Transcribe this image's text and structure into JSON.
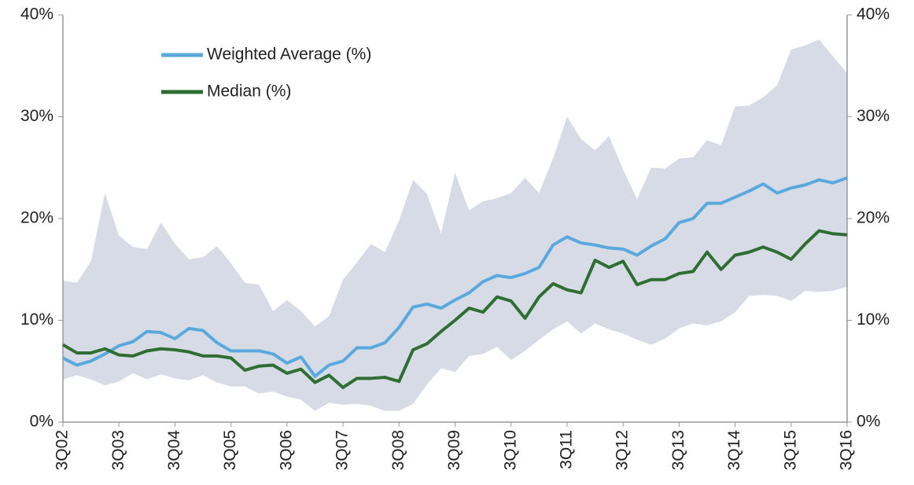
{
  "chart_data": {
    "type": "line",
    "categories": [
      "3Q02",
      null,
      null,
      null,
      "3Q03",
      null,
      null,
      null,
      "3Q04",
      null,
      null,
      null,
      "3Q05",
      null,
      null,
      null,
      "3Q06",
      null,
      null,
      null,
      "3Q07",
      null,
      null,
      null,
      "3Q08",
      null,
      null,
      null,
      "3Q09",
      null,
      null,
      null,
      "3Q10",
      null,
      null,
      null,
      "3Q11",
      null,
      null,
      null,
      "3Q12",
      null,
      null,
      null,
      "3Q13",
      null,
      null,
      null,
      "3Q14",
      null,
      null,
      null,
      "3Q15",
      null,
      null,
      null,
      "3Q16"
    ],
    "series": [
      {
        "name": "Weighted Average (%)",
        "color": "#5aa9de",
        "values": [
          6.3,
          5.6,
          6.0,
          6.7,
          7.5,
          7.9,
          8.9,
          8.8,
          8.2,
          9.2,
          9.0,
          7.8,
          7.0,
          7.0,
          7.0,
          6.7,
          5.8,
          6.4,
          4.5,
          5.6,
          6.0,
          7.3,
          7.3,
          7.8,
          9.3,
          11.3,
          11.6,
          11.2,
          12.0,
          12.7,
          13.8,
          14.4,
          14.2,
          14.6,
          15.2,
          17.4,
          18.2,
          17.6,
          17.4,
          17.1,
          17.0,
          16.4,
          17.3,
          18.0,
          19.6,
          20.0,
          21.5,
          21.5,
          22.1,
          22.7,
          23.4,
          22.5,
          23.0,
          23.3,
          23.8,
          23.5,
          24.0
        ]
      },
      {
        "name": "Median (%)",
        "color": "#2f6e32",
        "values": [
          7.6,
          6.8,
          6.8,
          7.2,
          6.6,
          6.5,
          7.0,
          7.2,
          7.1,
          6.9,
          6.5,
          6.5,
          6.3,
          5.1,
          5.5,
          5.6,
          4.8,
          5.2,
          3.9,
          4.6,
          3.4,
          4.3,
          4.3,
          4.4,
          4.0,
          7.1,
          7.7,
          8.9,
          10.0,
          11.2,
          10.8,
          12.3,
          11.9,
          10.2,
          12.3,
          13.6,
          13.0,
          12.7,
          15.9,
          15.2,
          15.8,
          13.5,
          14.0,
          14.0,
          14.6,
          14.8,
          16.7,
          15.0,
          16.4,
          16.7,
          17.2,
          16.7,
          16.0,
          17.5,
          18.8,
          18.5,
          18.4
        ]
      }
    ],
    "band": {
      "color": "#d6dbe5",
      "upper": [
        13.9,
        13.7,
        15.8,
        22.5,
        18.3,
        17.2,
        17.0,
        19.6,
        17.5,
        16.0,
        16.2,
        17.3,
        15.6,
        13.7,
        13.5,
        10.9,
        12.0,
        10.9,
        9.4,
        10.4,
        14.0,
        15.7,
        17.5,
        16.7,
        19.8,
        23.8,
        22.4,
        18.5,
        24.5,
        20.8,
        21.7,
        22.0,
        22.5,
        24.0,
        22.5,
        25.9,
        30.0,
        27.8,
        26.7,
        28.1,
        24.8,
        21.9,
        25.0,
        24.9,
        25.9,
        26.0,
        27.7,
        27.2,
        31.0,
        31.1,
        31.9,
        33.1,
        36.6,
        37.0,
        37.6,
        35.9,
        34.3
      ],
      "lower": [
        4.2,
        4.6,
        4.2,
        3.6,
        4.0,
        4.8,
        4.2,
        4.7,
        4.3,
        4.1,
        4.6,
        3.9,
        3.5,
        3.5,
        2.8,
        3.0,
        2.5,
        2.2,
        1.1,
        1.9,
        1.7,
        1.8,
        1.6,
        1.1,
        1.1,
        1.8,
        3.7,
        5.3,
        4.9,
        6.5,
        6.7,
        7.4,
        6.1,
        7.0,
        8.1,
        9.1,
        9.9,
        8.7,
        9.7,
        9.1,
        8.7,
        8.1,
        7.6,
        8.2,
        9.2,
        9.7,
        9.5,
        9.9,
        10.8,
        12.4,
        12.5,
        12.4,
        11.9,
        12.9,
        12.8,
        12.9,
        13.3
      ]
    },
    "ylim": [
      0,
      40
    ],
    "yticks": [
      {
        "value": 0,
        "label": "0%"
      },
      {
        "value": 10,
        "label": "10%"
      },
      {
        "value": 20,
        "label": "20%"
      },
      {
        "value": 30,
        "label": "30%"
      },
      {
        "value": 40,
        "label": "40%"
      }
    ],
    "y2lim": [
      0,
      40
    ],
    "y2ticks": [
      {
        "value": 0,
        "label": "0%"
      },
      {
        "value": 10,
        "label": "10%"
      },
      {
        "value": 20,
        "label": "20%"
      },
      {
        "value": 30,
        "label": "30%"
      },
      {
        "value": 40,
        "label": "40%"
      }
    ],
    "legend": "upper left",
    "grid": false
  }
}
